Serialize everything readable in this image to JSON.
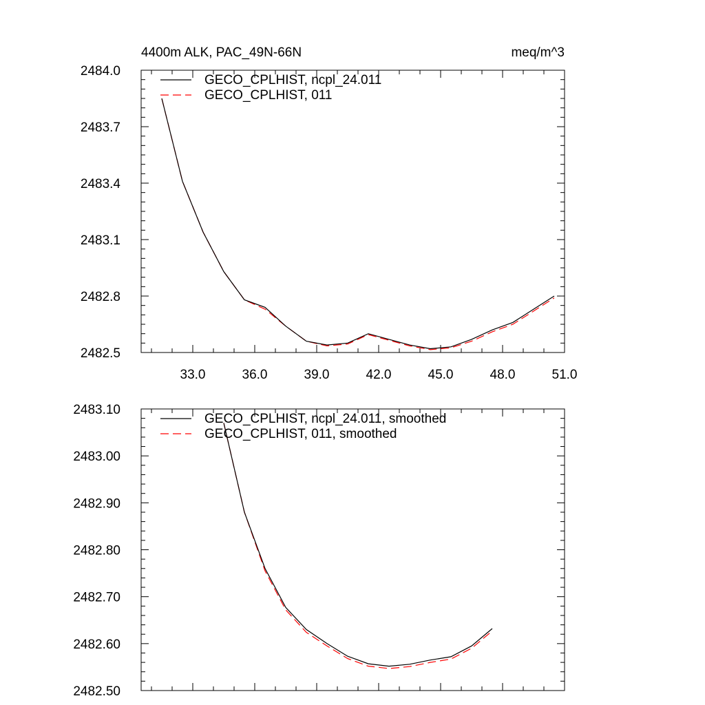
{
  "chart_data": [
    {
      "type": "line",
      "title": "4400m ALK, PAC_49N-66N",
      "units": "meq/m^3",
      "xlabel": "",
      "ylabel": "",
      "xlim": [
        30.5,
        51.0
      ],
      "ylim": [
        2482.5,
        2484.0
      ],
      "xticks": [
        "33.0",
        "36.0",
        "39.0",
        "42.0",
        "45.0",
        "48.0",
        "51.0"
      ],
      "yticks": [
        "2482.5",
        "2482.8",
        "2483.1",
        "2483.4",
        "2483.7",
        "2484.0"
      ],
      "legend_position": "top-left",
      "grid": false,
      "x": [
        31.5,
        32.5,
        33.5,
        34.5,
        35.5,
        36.5,
        37.5,
        38.5,
        39.5,
        40.5,
        41.5,
        42.5,
        43.5,
        44.5,
        45.5,
        46.5,
        47.5,
        48.5,
        49.5,
        50.5
      ],
      "series": [
        {
          "name": "GECO_CPLHIST, ncpl_24.011",
          "color": "#000000",
          "dash": "solid",
          "values": [
            2483.85,
            2483.41,
            2483.14,
            2482.93,
            2482.78,
            2482.74,
            2482.64,
            2482.56,
            2482.54,
            2482.55,
            2482.6,
            2482.57,
            2482.54,
            2482.52,
            2482.53,
            2482.57,
            2482.62,
            2482.66,
            2482.73,
            2482.8
          ]
        },
        {
          "name": "GECO_CPLHIST, 011",
          "color": "#ff0000",
          "dash": "dashed",
          "values": [
            2483.85,
            2483.41,
            2483.14,
            2482.93,
            2482.78,
            2482.73,
            2482.64,
            2482.56,
            2482.535,
            2482.545,
            2482.595,
            2482.565,
            2482.535,
            2482.515,
            2482.525,
            2482.56,
            2482.61,
            2482.65,
            2482.72,
            2482.79
          ]
        }
      ]
    },
    {
      "type": "line",
      "title": "",
      "xlabel": "",
      "ylabel": "",
      "xlim": [
        30.5,
        51.0
      ],
      "ylim": [
        2482.5,
        2483.1
      ],
      "yticks": [
        "2482.50",
        "2482.60",
        "2482.70",
        "2482.80",
        "2482.90",
        "2483.00",
        "2483.10"
      ],
      "legend_position": "top-left",
      "grid": false,
      "x": [
        34.5,
        35.5,
        36.5,
        37.5,
        38.5,
        39.5,
        40.5,
        41.5,
        42.5,
        43.5,
        44.5,
        45.5,
        46.5,
        47.5
      ],
      "series": [
        {
          "name": "GECO_CPLHIST, ncpl_24.011, smoothed",
          "color": "#000000",
          "dash": "solid",
          "values": [
            2483.07,
            2482.88,
            2482.76,
            2482.677,
            2482.63,
            2482.6,
            2482.573,
            2482.557,
            2482.552,
            2482.556,
            2482.565,
            2482.572,
            2482.595,
            2482.632
          ]
        },
        {
          "name": "GECO_CPLHIST, 011, smoothed",
          "color": "#ff0000",
          "dash": "dashed",
          "values": [
            2483.07,
            2482.88,
            2482.755,
            2482.672,
            2482.624,
            2482.595,
            2482.568,
            2482.552,
            2482.547,
            2482.551,
            2482.56,
            2482.567,
            2482.59,
            2482.627
          ]
        }
      ]
    }
  ]
}
